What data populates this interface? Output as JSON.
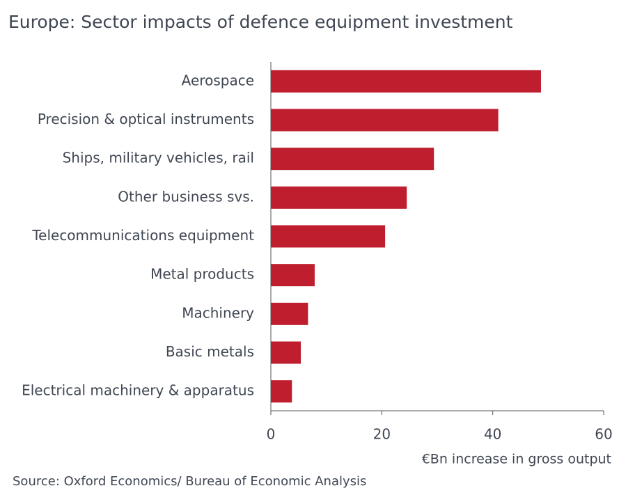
{
  "chart_data": {
    "type": "bar",
    "orientation": "horizontal",
    "title": "Europe: Sector impacts of defence equipment investment",
    "categories": [
      "Aerospace",
      "Precision & optical instruments",
      "Ships, military vehicles, rail",
      "Other business svs.",
      "Telecommunications equipment",
      "Metal products",
      "Machinery",
      "Basic metals",
      "Electrical machinery & apparatus"
    ],
    "values": [
      48.7,
      41.0,
      29.4,
      24.5,
      20.6,
      7.9,
      6.7,
      5.4,
      3.8
    ],
    "color": "#be1e2d",
    "xlim": [
      0,
      60
    ],
    "xticks": [
      0,
      20,
      40,
      60
    ],
    "x_label": "€Bn increase in gross output",
    "source": "Source: Oxford Economics/ Bureau of Economic Analysis"
  }
}
